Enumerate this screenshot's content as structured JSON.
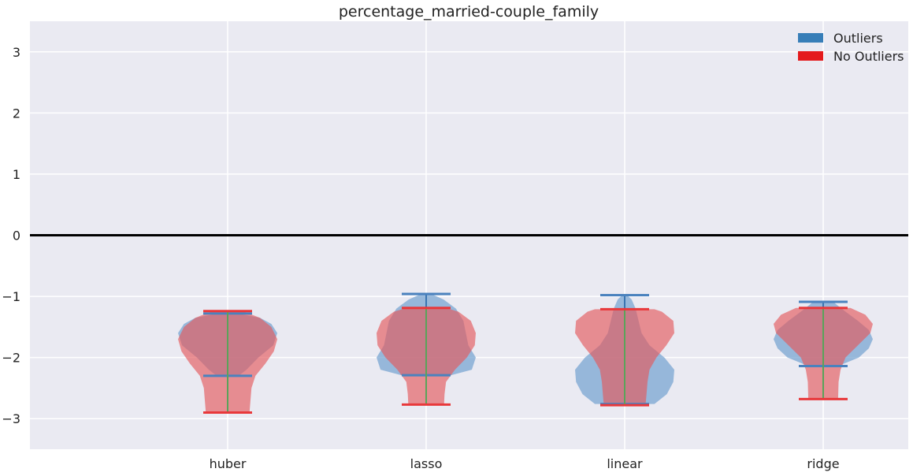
{
  "chart_data": {
    "type": "violin",
    "title": "percentage_married-couple_family",
    "xlabel": "",
    "ylabel": "",
    "categories": [
      "huber",
      "lasso",
      "linear",
      "ridge"
    ],
    "ylim": [
      -3.5,
      3.5
    ],
    "yticks": [
      -3,
      -2,
      -1,
      0,
      1,
      2,
      3
    ],
    "ytick_labels": [
      "−3",
      "−2",
      "−1",
      "0",
      "1",
      "2",
      "3"
    ],
    "grid": true,
    "reference_line_y": 0,
    "legend": {
      "position": "top-right",
      "entries": [
        "Outliers",
        "No Outliers"
      ]
    },
    "series": [
      {
        "name": "Outliers",
        "color": "#377eb8",
        "min": [
          -2.3,
          -2.29,
          -2.76,
          -2.14
        ],
        "max": [
          -1.28,
          -0.96,
          -0.98,
          -1.09
        ],
        "density": [
          [
            [
              -2.3,
              0.22
            ],
            [
              -2.2,
              0.38
            ],
            [
              -2.0,
              0.62
            ],
            [
              -1.8,
              0.92
            ],
            [
              -1.6,
              1.0
            ],
            [
              -1.45,
              0.88
            ],
            [
              -1.35,
              0.65
            ],
            [
              -1.28,
              0.2
            ]
          ],
          [
            [
              -2.29,
              0.5
            ],
            [
              -2.2,
              0.92
            ],
            [
              -2.0,
              1.0
            ],
            [
              -1.8,
              0.85
            ],
            [
              -1.6,
              0.8
            ],
            [
              -1.4,
              0.75
            ],
            [
              -1.2,
              0.6
            ],
            [
              -1.05,
              0.35
            ],
            [
              -0.96,
              0.1
            ]
          ],
          [
            [
              -2.76,
              0.6
            ],
            [
              -2.6,
              0.85
            ],
            [
              -2.4,
              0.98
            ],
            [
              -2.2,
              1.0
            ],
            [
              -2.0,
              0.8
            ],
            [
              -1.8,
              0.5
            ],
            [
              -1.6,
              0.34
            ],
            [
              -1.4,
              0.28
            ],
            [
              -1.2,
              0.22
            ],
            [
              -1.05,
              0.14
            ],
            [
              -0.98,
              0.05
            ]
          ],
          [
            [
              -2.14,
              0.3
            ],
            [
              -2.0,
              0.72
            ],
            [
              -1.85,
              0.92
            ],
            [
              -1.7,
              1.0
            ],
            [
              -1.55,
              0.92
            ],
            [
              -1.4,
              0.7
            ],
            [
              -1.25,
              0.45
            ],
            [
              -1.09,
              0.2
            ]
          ]
        ]
      },
      {
        "name": "No Outliers",
        "color": "#e41a1c",
        "min": [
          -2.9,
          -2.77,
          -2.78,
          -2.68
        ],
        "max": [
          -1.24,
          -1.19,
          -1.21,
          -1.19
        ],
        "density": [
          [
            [
              -2.9,
              0.44
            ],
            [
              -2.7,
              0.46
            ],
            [
              -2.5,
              0.48
            ],
            [
              -2.3,
              0.56
            ],
            [
              -2.1,
              0.76
            ],
            [
              -1.9,
              0.93
            ],
            [
              -1.7,
              1.0
            ],
            [
              -1.5,
              0.88
            ],
            [
              -1.35,
              0.65
            ],
            [
              -1.24,
              0.3
            ]
          ],
          [
            [
              -2.77,
              0.36
            ],
            [
              -2.6,
              0.37
            ],
            [
              -2.4,
              0.4
            ],
            [
              -2.2,
              0.58
            ],
            [
              -2.0,
              0.82
            ],
            [
              -1.8,
              0.98
            ],
            [
              -1.6,
              1.0
            ],
            [
              -1.4,
              0.9
            ],
            [
              -1.25,
              0.65
            ],
            [
              -1.19,
              0.4
            ]
          ],
          [
            [
              -2.78,
              0.42
            ],
            [
              -2.6,
              0.44
            ],
            [
              -2.4,
              0.46
            ],
            [
              -2.2,
              0.5
            ],
            [
              -2.0,
              0.64
            ],
            [
              -1.8,
              0.84
            ],
            [
              -1.6,
              1.0
            ],
            [
              -1.4,
              0.98
            ],
            [
              -1.25,
              0.75
            ],
            [
              -1.21,
              0.6
            ]
          ],
          [
            [
              -2.68,
              0.3
            ],
            [
              -2.4,
              0.31
            ],
            [
              -2.2,
              0.35
            ],
            [
              -2.0,
              0.45
            ],
            [
              -1.8,
              0.7
            ],
            [
              -1.6,
              0.95
            ],
            [
              -1.45,
              1.0
            ],
            [
              -1.3,
              0.85
            ],
            [
              -1.19,
              0.55
            ]
          ]
        ]
      }
    ]
  }
}
